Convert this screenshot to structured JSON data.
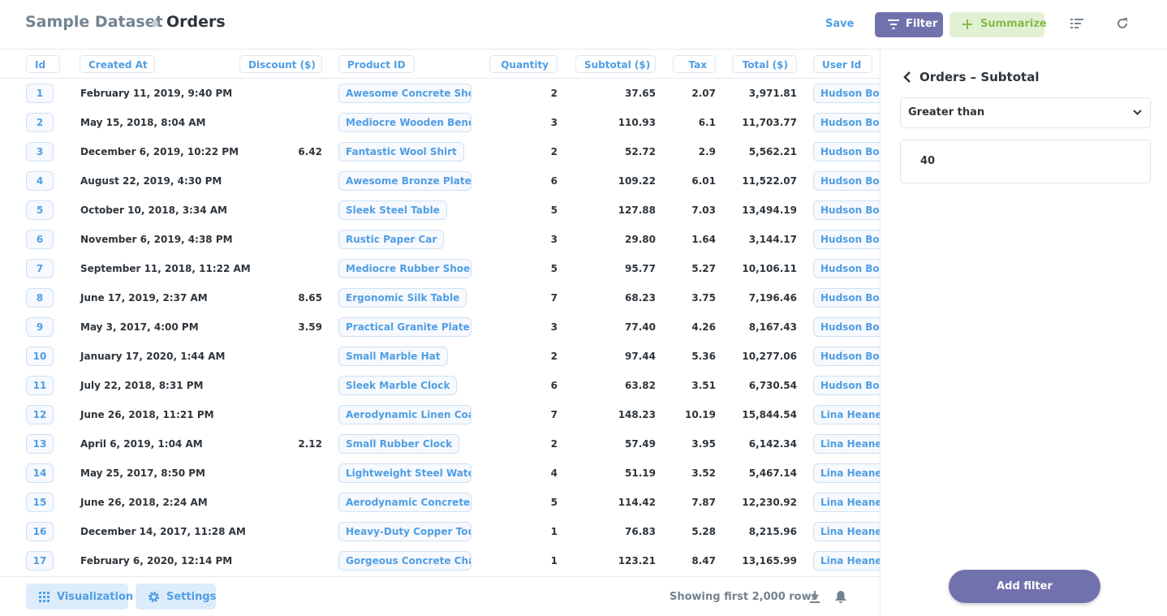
{
  "header": {
    "breadcrumb": "Sample Dataset",
    "title": "Orders",
    "save": "Save",
    "filter": "Filter",
    "summarize": "Summarize"
  },
  "table": {
    "columns": [
      "Id",
      "Created At",
      "Discount ($)",
      "Product ID",
      "Quantity",
      "Subtotal ($)",
      "Tax",
      "Total ($)",
      "User Id"
    ],
    "rows": [
      [
        "1",
        "February 11, 2019, 9:40 PM",
        null,
        "Awesome Concrete Shoes",
        "2",
        "37.65",
        "2.07",
        "3,971.81",
        "Hudson Borer"
      ],
      [
        "2",
        "May 15, 2018, 8:04 AM",
        null,
        "Mediocre Wooden Bench",
        "3",
        "110.93",
        "6.1",
        "11,703.77",
        "Hudson Borer"
      ],
      [
        "3",
        "December 6, 2019, 10:22 PM",
        "6.42",
        "Fantastic Wool Shirt",
        "2",
        "52.72",
        "2.9",
        "5,562.21",
        "Hudson Borer"
      ],
      [
        "4",
        "August 22, 2019, 4:30 PM",
        null,
        "Awesome Bronze Plate",
        "6",
        "109.22",
        "6.01",
        "11,522.07",
        "Hudson Borer"
      ],
      [
        "5",
        "October 10, 2018, 3:34 AM",
        null,
        "Sleek Steel Table",
        "5",
        "127.88",
        "7.03",
        "13,494.19",
        "Hudson Borer"
      ],
      [
        "6",
        "November 6, 2019, 4:38 PM",
        null,
        "Rustic Paper Car",
        "3",
        "29.80",
        "1.64",
        "3,144.17",
        "Hudson Borer"
      ],
      [
        "7",
        "September 11, 2018, 11:22 AM",
        null,
        "Mediocre Rubber Shoes",
        "5",
        "95.77",
        "5.27",
        "10,106.11",
        "Hudson Borer"
      ],
      [
        "8",
        "June 17, 2019, 2:37 AM",
        "8.65",
        "Ergonomic Silk Table",
        "7",
        "68.23",
        "3.75",
        "7,196.46",
        "Hudson Borer"
      ],
      [
        "9",
        "May 3, 2017, 4:00 PM",
        "3.59",
        "Practical Granite Plate",
        "3",
        "77.40",
        "4.26",
        "8,167.43",
        "Hudson Borer"
      ],
      [
        "10",
        "January 17, 2020, 1:44 AM",
        null,
        "Small Marble Hat",
        "2",
        "97.44",
        "5.36",
        "10,277.06",
        "Hudson Borer"
      ],
      [
        "11",
        "July 22, 2018, 8:31 PM",
        null,
        "Sleek Marble Clock",
        "6",
        "63.82",
        "3.51",
        "6,730.54",
        "Hudson Borer"
      ],
      [
        "12",
        "June 26, 2018, 11:21 PM",
        null,
        "Aerodynamic Linen Coat",
        "7",
        "148.23",
        "10.19",
        "15,844.54",
        "Lina Heaney"
      ],
      [
        "13",
        "April 6, 2019, 1:04 AM",
        "2.12",
        "Small Rubber Clock",
        "2",
        "57.49",
        "3.95",
        "6,142.34",
        "Lina Heaney"
      ],
      [
        "14",
        "May 25, 2017, 8:50 PM",
        null,
        "Lightweight Steel Watch",
        "4",
        "51.19",
        "3.52",
        "5,467.14",
        "Lina Heaney"
      ],
      [
        "15",
        "June 26, 2018, 2:24 AM",
        null,
        "Aerodynamic Concrete ...",
        "5",
        "114.42",
        "7.87",
        "12,230.92",
        "Lina Heaney"
      ],
      [
        "16",
        "December 14, 2017, 11:28 AM",
        null,
        "Heavy-Duty Copper Tou...",
        "1",
        "76.83",
        "5.28",
        "8,215.96",
        "Lina Heaney"
      ],
      [
        "17",
        "February 6, 2020, 12:14 PM",
        null,
        "Gorgeous Concrete Chair",
        "1",
        "123.21",
        "8.47",
        "13,165.99",
        "Lina Heaney"
      ]
    ]
  },
  "footer": {
    "visualization": "Visualization",
    "settings": "Settings",
    "status": "Showing first 2,000 rows"
  },
  "sidebar": {
    "title": "Orders – Subtotal",
    "operator": "Greater than",
    "value": "40",
    "button": "Add filter"
  }
}
